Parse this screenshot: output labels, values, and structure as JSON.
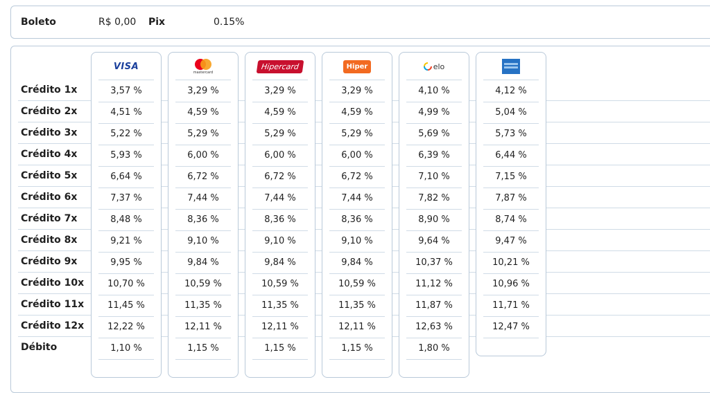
{
  "summary": {
    "boleto_label": "Boleto",
    "boleto_value": "R$ 0,00",
    "pix_label": "Pix",
    "pix_value": "0.15%"
  },
  "row_labels": [
    "Crédito 1x",
    "Crédito 2x",
    "Crédito 3x",
    "Crédito 4x",
    "Crédito 5x",
    "Crédito 6x",
    "Crédito 7x",
    "Crédito 8x",
    "Crédito 9x",
    "Crédito 10x",
    "Crédito 11x",
    "Crédito 12x",
    "Débito"
  ],
  "brands": [
    {
      "name": "visa",
      "logo_text": "VISA",
      "rates": [
        "3,57 %",
        "4,51 %",
        "5,22 %",
        "5,93 %",
        "6,64 %",
        "7,37 %",
        "8,48 %",
        "9,21 %",
        "9,95 %",
        "10,70 %",
        "11,45 %",
        "12,22 %",
        "1,10 %"
      ]
    },
    {
      "name": "mastercard",
      "logo_text": "mastercard",
      "rates": [
        "3,29 %",
        "4,59 %",
        "5,29 %",
        "6,00 %",
        "6,72 %",
        "7,44 %",
        "8,36 %",
        "9,10 %",
        "9,84 %",
        "10,59 %",
        "11,35 %",
        "12,11 %",
        "1,15 %"
      ]
    },
    {
      "name": "hipercard",
      "logo_text": "Hipercard",
      "rates": [
        "3,29 %",
        "4,59 %",
        "5,29 %",
        "6,00 %",
        "6,72 %",
        "7,44 %",
        "8,36 %",
        "9,10 %",
        "9,84 %",
        "10,59 %",
        "11,35 %",
        "12,11 %",
        "1,15 %"
      ]
    },
    {
      "name": "hiper",
      "logo_text": "Hiper",
      "rates": [
        "3,29 %",
        "4,59 %",
        "5,29 %",
        "6,00 %",
        "6,72 %",
        "7,44 %",
        "8,36 %",
        "9,10 %",
        "9,84 %",
        "10,59 %",
        "11,35 %",
        "12,11 %",
        "1,15 %"
      ]
    },
    {
      "name": "elo",
      "logo_text": "elo",
      "rates": [
        "4,10 %",
        "4,99 %",
        "5,69 %",
        "6,39 %",
        "7,10 %",
        "7,82 %",
        "8,90 %",
        "9,64 %",
        "10,37 %",
        "11,12 %",
        "11,87 %",
        "12,63 %",
        "1,80 %"
      ]
    },
    {
      "name": "amex",
      "logo_text": "",
      "rates": [
        "4,12 %",
        "5,04 %",
        "5,73 %",
        "6,44 %",
        "7,15 %",
        "7,87 %",
        "8,74 %",
        "9,47 %",
        "10,21 %",
        "10,96 %",
        "11,71 %",
        "12,47 %"
      ]
    }
  ]
}
